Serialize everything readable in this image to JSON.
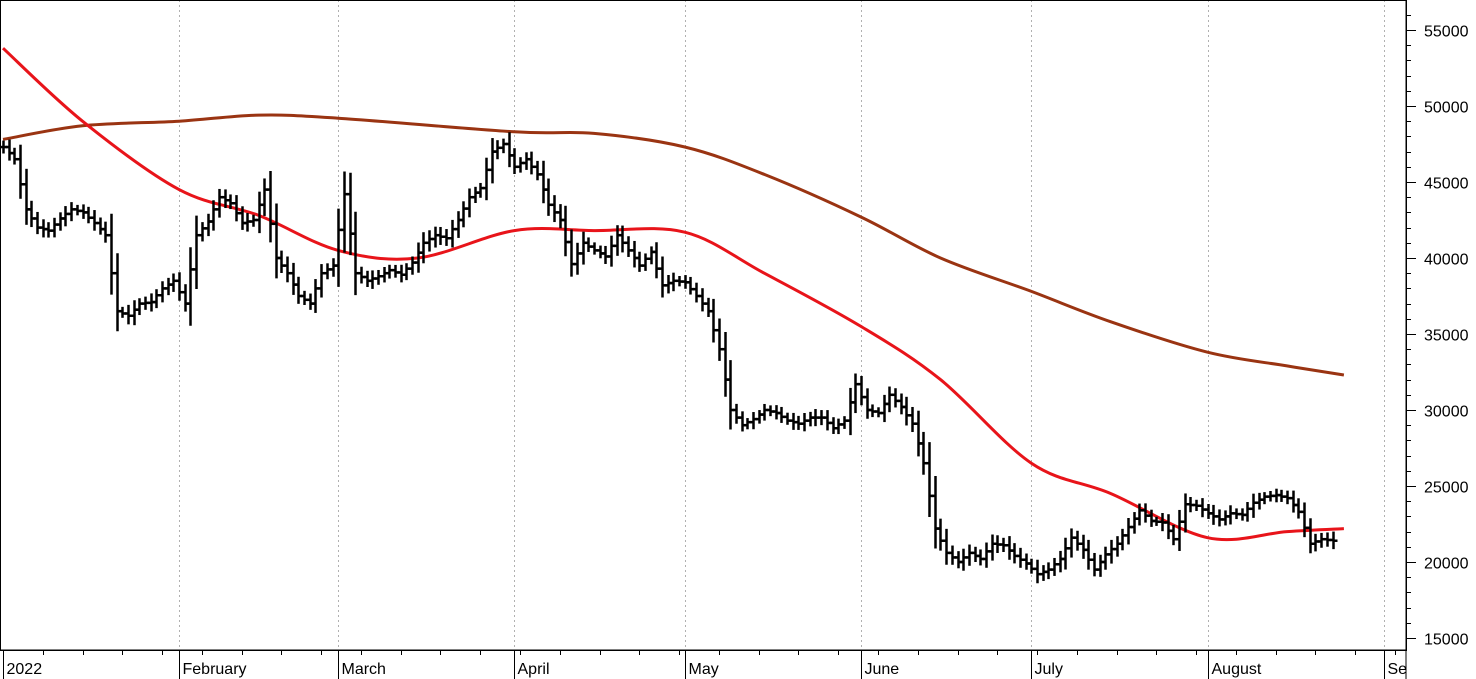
{
  "chart_data": {
    "type": "line",
    "subtype": "ohlc-bars-with-moving-averages",
    "title": "",
    "xlabel": "",
    "ylabel": "",
    "ylim": [
      14500,
      57000
    ],
    "x_range": [
      "2022-01-01",
      "2022-09-03"
    ],
    "grid": "vertical dotted lines at month starts",
    "y_axis_side": "right",
    "y_ticks": [
      "15000",
      "20000",
      "25000",
      "30000",
      "35000",
      "40000",
      "45000",
      "50000",
      "55000"
    ],
    "x_tick_labels": [
      {
        "date": "2022-01-01",
        "label": "2022"
      },
      {
        "date": "2022-02-01",
        "label": "February"
      },
      {
        "date": "2022-03-01",
        "label": "March"
      },
      {
        "date": "2022-04-01",
        "label": "April"
      },
      {
        "date": "2022-05-01",
        "label": "May"
      },
      {
        "date": "2022-06-01",
        "label": "June"
      },
      {
        "date": "2022-07-01",
        "label": "July"
      },
      {
        "date": "2022-08-01",
        "label": "August"
      },
      {
        "date": "2022-09-01",
        "label": "Se"
      }
    ],
    "colors": {
      "price": "#000000",
      "ma_short": "#e8141a",
      "ma_long": "#9a3412",
      "grid": "#b0b0b0"
    },
    "series": [
      {
        "kind": "price-bars",
        "points": [
          [
            "2022-01-01",
            47300
          ],
          [
            "2022-01-03",
            46500
          ],
          [
            "2022-01-05",
            43200
          ],
          [
            "2022-01-07",
            42000
          ],
          [
            "2022-01-09",
            41800
          ],
          [
            "2022-01-11",
            42600
          ],
          [
            "2022-01-13",
            43200
          ],
          [
            "2022-01-15",
            43000
          ],
          [
            "2022-01-17",
            42300
          ],
          [
            "2022-01-19",
            41500
          ],
          [
            "2022-01-21",
            36500
          ],
          [
            "2022-01-23",
            36200
          ],
          [
            "2022-01-25",
            37000
          ],
          [
            "2022-01-27",
            37100
          ],
          [
            "2022-01-29",
            38000
          ],
          [
            "2022-01-31",
            38500
          ],
          [
            "2022-02-02",
            37000
          ],
          [
            "2022-02-04",
            41500
          ],
          [
            "2022-02-06",
            42400
          ],
          [
            "2022-02-08",
            44000
          ],
          [
            "2022-02-10",
            43600
          ],
          [
            "2022-02-12",
            42300
          ],
          [
            "2022-02-14",
            42500
          ],
          [
            "2022-02-16",
            44500
          ],
          [
            "2022-02-18",
            40000
          ],
          [
            "2022-02-20",
            39000
          ],
          [
            "2022-02-22",
            37500
          ],
          [
            "2022-02-24",
            37000
          ],
          [
            "2022-02-26",
            39000
          ],
          [
            "2022-02-28",
            39500
          ],
          [
            "2022-03-02",
            44200
          ],
          [
            "2022-03-04",
            39000
          ],
          [
            "2022-03-06",
            38500
          ],
          [
            "2022-03-08",
            38800
          ],
          [
            "2022-03-10",
            39200
          ],
          [
            "2022-03-12",
            38900
          ],
          [
            "2022-03-14",
            39700
          ],
          [
            "2022-03-16",
            41000
          ],
          [
            "2022-03-18",
            41500
          ],
          [
            "2022-03-20",
            41300
          ],
          [
            "2022-03-22",
            42500
          ],
          [
            "2022-03-24",
            44000
          ],
          [
            "2022-03-26",
            44600
          ],
          [
            "2022-03-28",
            47000
          ],
          [
            "2022-03-30",
            47500
          ],
          [
            "2022-04-01",
            46000
          ],
          [
            "2022-04-03",
            46500
          ],
          [
            "2022-04-05",
            45500
          ],
          [
            "2022-04-07",
            43500
          ],
          [
            "2022-04-09",
            42500
          ],
          [
            "2022-04-11",
            39600
          ],
          [
            "2022-04-13",
            41000
          ],
          [
            "2022-04-15",
            40500
          ],
          [
            "2022-04-17",
            40100
          ],
          [
            "2022-04-19",
            41500
          ],
          [
            "2022-04-21",
            40500
          ],
          [
            "2022-04-23",
            39500
          ],
          [
            "2022-04-25",
            40400
          ],
          [
            "2022-04-27",
            38200
          ],
          [
            "2022-04-29",
            38500
          ],
          [
            "2022-05-01",
            38400
          ],
          [
            "2022-05-03",
            37500
          ],
          [
            "2022-05-05",
            36500
          ],
          [
            "2022-05-07",
            34000
          ],
          [
            "2022-05-09",
            30000
          ],
          [
            "2022-05-11",
            29000
          ],
          [
            "2022-05-13",
            29400
          ],
          [
            "2022-05-15",
            30000
          ],
          [
            "2022-05-17",
            29800
          ],
          [
            "2022-05-19",
            29300
          ],
          [
            "2022-05-21",
            29100
          ],
          [
            "2022-05-23",
            29500
          ],
          [
            "2022-05-25",
            29500
          ],
          [
            "2022-05-27",
            28800
          ],
          [
            "2022-05-29",
            29300
          ],
          [
            "2022-05-31",
            31700
          ],
          [
            "2022-06-02",
            30000
          ],
          [
            "2022-06-04",
            29800
          ],
          [
            "2022-06-06",
            31000
          ],
          [
            "2022-06-08",
            30200
          ],
          [
            "2022-06-10",
            29100
          ],
          [
            "2022-06-12",
            26500
          ],
          [
            "2022-06-14",
            22200
          ],
          [
            "2022-06-16",
            20600
          ],
          [
            "2022-06-18",
            20000
          ],
          [
            "2022-06-20",
            20600
          ],
          [
            "2022-06-22",
            20200
          ],
          [
            "2022-06-24",
            21200
          ],
          [
            "2022-06-26",
            21100
          ],
          [
            "2022-06-28",
            20400
          ],
          [
            "2022-06-30",
            19900
          ],
          [
            "2022-07-02",
            19200
          ],
          [
            "2022-07-04",
            19500
          ],
          [
            "2022-07-06",
            20200
          ],
          [
            "2022-07-08",
            21600
          ],
          [
            "2022-07-10",
            20800
          ],
          [
            "2022-07-12",
            19500
          ],
          [
            "2022-07-14",
            20500
          ],
          [
            "2022-07-16",
            21200
          ],
          [
            "2022-07-18",
            22300
          ],
          [
            "2022-07-20",
            23400
          ],
          [
            "2022-07-22",
            22700
          ],
          [
            "2022-07-24",
            22600
          ],
          [
            "2022-07-26",
            21500
          ],
          [
            "2022-07-28",
            23800
          ],
          [
            "2022-07-30",
            23700
          ],
          [
            "2022-08-01",
            23200
          ],
          [
            "2022-08-03",
            22800
          ],
          [
            "2022-08-05",
            23200
          ],
          [
            "2022-08-07",
            23100
          ],
          [
            "2022-08-09",
            23900
          ],
          [
            "2022-08-11",
            24300
          ],
          [
            "2022-08-13",
            24400
          ],
          [
            "2022-08-15",
            24200
          ],
          [
            "2022-08-17",
            23300
          ],
          [
            "2022-08-19",
            21200
          ],
          [
            "2022-08-21",
            21500
          ],
          [
            "2022-08-23",
            21400
          ]
        ]
      },
      {
        "kind": "moving-average-short",
        "points": [
          [
            "2022-01-01",
            53800
          ],
          [
            "2022-01-15",
            49000
          ],
          [
            "2022-02-01",
            44500
          ],
          [
            "2022-02-15",
            42800
          ],
          [
            "2022-03-01",
            40500
          ],
          [
            "2022-03-15",
            40000
          ],
          [
            "2022-04-01",
            41800
          ],
          [
            "2022-04-15",
            41800
          ],
          [
            "2022-05-01",
            41700
          ],
          [
            "2022-05-15",
            39000
          ],
          [
            "2022-06-01",
            35500
          ],
          [
            "2022-06-15",
            32000
          ],
          [
            "2022-07-01",
            26500
          ],
          [
            "2022-07-15",
            24500
          ],
          [
            "2022-08-01",
            21600
          ],
          [
            "2022-08-15",
            22000
          ],
          [
            "2022-08-25",
            22200
          ]
        ]
      },
      {
        "kind": "moving-average-long",
        "points": [
          [
            "2022-01-01",
            47800
          ],
          [
            "2022-01-15",
            48700
          ],
          [
            "2022-02-01",
            49000
          ],
          [
            "2022-02-15",
            49400
          ],
          [
            "2022-03-01",
            49200
          ],
          [
            "2022-04-01",
            48300
          ],
          [
            "2022-04-15",
            48200
          ],
          [
            "2022-05-01",
            47300
          ],
          [
            "2022-05-15",
            45500
          ],
          [
            "2022-06-01",
            42700
          ],
          [
            "2022-06-15",
            40000
          ],
          [
            "2022-07-01",
            37800
          ],
          [
            "2022-07-15",
            35800
          ],
          [
            "2022-08-01",
            33800
          ],
          [
            "2022-08-15",
            32900
          ],
          [
            "2022-08-25",
            32300
          ]
        ]
      }
    ]
  }
}
